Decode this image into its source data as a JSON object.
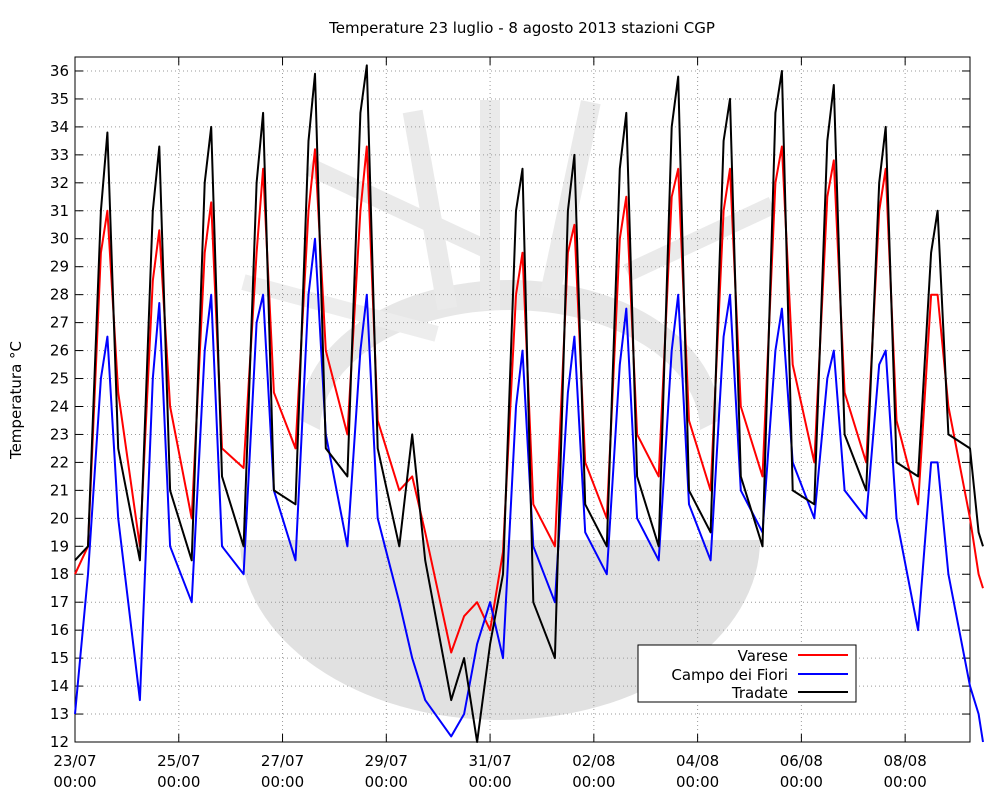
{
  "chart_data": {
    "type": "line",
    "title": "Temperature 23 luglio - 8 agosto 2013 stazioni CGP",
    "ylabel": "Temperatura °C",
    "xlabel": "",
    "ylim": [
      12,
      36.5
    ],
    "xlim": [
      "2013-07-23 00:00",
      "2013-08-09 06:00"
    ],
    "y_ticks": [
      12,
      13,
      14,
      15,
      16,
      17,
      18,
      19,
      20,
      21,
      22,
      23,
      24,
      25,
      26,
      27,
      28,
      29,
      30,
      31,
      32,
      33,
      34,
      35,
      36
    ],
    "x_ticks": [
      {
        "date": "2013-07-23",
        "label1": "23/07",
        "label2": "00:00"
      },
      {
        "date": "2013-07-25",
        "label1": "25/07",
        "label2": "00:00"
      },
      {
        "date": "2013-07-27",
        "label1": "27/07",
        "label2": "00:00"
      },
      {
        "date": "2013-07-29",
        "label1": "29/07",
        "label2": "00:00"
      },
      {
        "date": "2013-07-31",
        "label1": "31/07",
        "label2": "00:00"
      },
      {
        "date": "2013-08-02",
        "label1": "02/08",
        "label2": "00:00"
      },
      {
        "date": "2013-08-04",
        "label1": "04/08",
        "label2": "00:00"
      },
      {
        "date": "2013-08-06",
        "label1": "06/08",
        "label2": "00:00"
      },
      {
        "date": "2013-08-08",
        "label1": "08/08",
        "label2": "00:00"
      }
    ],
    "grid": true,
    "legend_position": "bottom-right",
    "series": [
      {
        "name": "Varese",
        "color": "#ff0000",
        "points": [
          [
            "2013-07-23 00:00",
            18.0
          ],
          [
            "2013-07-23 06:00",
            19.0
          ],
          [
            "2013-07-23 12:00",
            29.5
          ],
          [
            "2013-07-23 15:00",
            31.0
          ],
          [
            "2013-07-23 20:00",
            24.5
          ],
          [
            "2013-07-24 06:00",
            19.0
          ],
          [
            "2013-07-24 12:00",
            28.5
          ],
          [
            "2013-07-24 15:00",
            30.3
          ],
          [
            "2013-07-24 20:00",
            24.0
          ],
          [
            "2013-07-25 06:00",
            20.0
          ],
          [
            "2013-07-25 12:00",
            29.5
          ],
          [
            "2013-07-25 15:00",
            31.3
          ],
          [
            "2013-07-25 20:00",
            22.5
          ],
          [
            "2013-07-26 06:00",
            21.8
          ],
          [
            "2013-07-26 12:00",
            29.5
          ],
          [
            "2013-07-26 15:00",
            32.5
          ],
          [
            "2013-07-26 20:00",
            24.5
          ],
          [
            "2013-07-27 06:00",
            22.5
          ],
          [
            "2013-07-27 12:00",
            31.0
          ],
          [
            "2013-07-27 15:00",
            33.2
          ],
          [
            "2013-07-27 20:00",
            26.0
          ],
          [
            "2013-07-28 06:00",
            23.0
          ],
          [
            "2013-07-28 12:00",
            31.0
          ],
          [
            "2013-07-28 15:00",
            33.3
          ],
          [
            "2013-07-28 20:00",
            23.5
          ],
          [
            "2013-07-29 06:00",
            21.0
          ],
          [
            "2013-07-29 12:00",
            21.5
          ],
          [
            "2013-07-29 18:00",
            19.5
          ],
          [
            "2013-07-30 06:00",
            15.2
          ],
          [
            "2013-07-30 12:00",
            16.5
          ],
          [
            "2013-07-30 18:00",
            17.0
          ],
          [
            "2013-07-31 00:00",
            16.0
          ],
          [
            "2013-07-31 06:00",
            18.8
          ],
          [
            "2013-07-31 12:00",
            28.0
          ],
          [
            "2013-07-31 15:00",
            29.5
          ],
          [
            "2013-07-31 20:00",
            20.5
          ],
          [
            "2013-08-01 06:00",
            19.0
          ],
          [
            "2013-08-01 12:00",
            29.5
          ],
          [
            "2013-08-01 15:00",
            30.5
          ],
          [
            "2013-08-01 20:00",
            22.0
          ],
          [
            "2013-08-02 06:00",
            20.0
          ],
          [
            "2013-08-02 12:00",
            30.0
          ],
          [
            "2013-08-02 15:00",
            31.5
          ],
          [
            "2013-08-02 20:00",
            23.0
          ],
          [
            "2013-08-03 06:00",
            21.5
          ],
          [
            "2013-08-03 12:00",
            31.5
          ],
          [
            "2013-08-03 15:00",
            32.5
          ],
          [
            "2013-08-03 20:00",
            23.5
          ],
          [
            "2013-08-04 06:00",
            21.0
          ],
          [
            "2013-08-04 12:00",
            31.0
          ],
          [
            "2013-08-04 15:00",
            32.5
          ],
          [
            "2013-08-04 20:00",
            24.0
          ],
          [
            "2013-08-05 06:00",
            21.5
          ],
          [
            "2013-08-05 12:00",
            32.0
          ],
          [
            "2013-08-05 15:00",
            33.3
          ],
          [
            "2013-08-05 20:00",
            25.5
          ],
          [
            "2013-08-06 06:00",
            22.0
          ],
          [
            "2013-08-06 12:00",
            31.5
          ],
          [
            "2013-08-06 15:00",
            32.8
          ],
          [
            "2013-08-06 20:00",
            24.5
          ],
          [
            "2013-08-07 06:00",
            22.0
          ],
          [
            "2013-08-07 12:00",
            31.0
          ],
          [
            "2013-08-07 15:00",
            32.5
          ],
          [
            "2013-08-07 20:00",
            23.5
          ],
          [
            "2013-08-08 06:00",
            20.5
          ],
          [
            "2013-08-08 12:00",
            28.0
          ],
          [
            "2013-08-08 15:00",
            28.0
          ],
          [
            "2013-08-08 20:00",
            24.0
          ],
          [
            "2013-08-09 06:00",
            20.0
          ],
          [
            "2013-08-09 10:00",
            18.0
          ],
          [
            "2013-08-09 12:00",
            17.5
          ]
        ]
      },
      {
        "name": "Campo dei Fiori",
        "color": "#0000ff",
        "points": [
          [
            "2013-07-23 00:00",
            13.0
          ],
          [
            "2013-07-23 06:00",
            18.0
          ],
          [
            "2013-07-23 12:00",
            25.0
          ],
          [
            "2013-07-23 15:00",
            26.5
          ],
          [
            "2013-07-23 20:00",
            20.0
          ],
          [
            "2013-07-24 06:00",
            13.5
          ],
          [
            "2013-07-24 12:00",
            25.0
          ],
          [
            "2013-07-24 15:00",
            27.7
          ],
          [
            "2013-07-24 20:00",
            19.0
          ],
          [
            "2013-07-25 06:00",
            17.0
          ],
          [
            "2013-07-25 12:00",
            26.0
          ],
          [
            "2013-07-25 15:00",
            28.0
          ],
          [
            "2013-07-25 20:00",
            19.0
          ],
          [
            "2013-07-26 06:00",
            18.0
          ],
          [
            "2013-07-26 12:00",
            27.0
          ],
          [
            "2013-07-26 15:00",
            28.0
          ],
          [
            "2013-07-26 20:00",
            21.0
          ],
          [
            "2013-07-27 06:00",
            18.5
          ],
          [
            "2013-07-27 12:00",
            28.0
          ],
          [
            "2013-07-27 15:00",
            30.0
          ],
          [
            "2013-07-27 20:00",
            23.0
          ],
          [
            "2013-07-28 06:00",
            19.0
          ],
          [
            "2013-07-28 12:00",
            26.0
          ],
          [
            "2013-07-28 15:00",
            28.0
          ],
          [
            "2013-07-28 20:00",
            20.0
          ],
          [
            "2013-07-29 06:00",
            17.0
          ],
          [
            "2013-07-29 12:00",
            15.0
          ],
          [
            "2013-07-29 18:00",
            13.5
          ],
          [
            "2013-07-30 06:00",
            12.2
          ],
          [
            "2013-07-30 12:00",
            13.0
          ],
          [
            "2013-07-30 18:00",
            15.5
          ],
          [
            "2013-07-31 00:00",
            17.0
          ],
          [
            "2013-07-31 06:00",
            15.0
          ],
          [
            "2013-07-31 12:00",
            24.0
          ],
          [
            "2013-07-31 15:00",
            26.0
          ],
          [
            "2013-07-31 20:00",
            19.0
          ],
          [
            "2013-08-01 06:00",
            17.0
          ],
          [
            "2013-08-01 12:00",
            24.5
          ],
          [
            "2013-08-01 15:00",
            26.5
          ],
          [
            "2013-08-01 20:00",
            19.5
          ],
          [
            "2013-08-02 06:00",
            18.0
          ],
          [
            "2013-08-02 12:00",
            25.5
          ],
          [
            "2013-08-02 15:00",
            27.5
          ],
          [
            "2013-08-02 20:00",
            20.0
          ],
          [
            "2013-08-03 06:00",
            18.5
          ],
          [
            "2013-08-03 12:00",
            26.0
          ],
          [
            "2013-08-03 15:00",
            28.0
          ],
          [
            "2013-08-03 20:00",
            20.5
          ],
          [
            "2013-08-04 06:00",
            18.5
          ],
          [
            "2013-08-04 12:00",
            26.5
          ],
          [
            "2013-08-04 15:00",
            28.0
          ],
          [
            "2013-08-04 20:00",
            21.0
          ],
          [
            "2013-08-05 06:00",
            19.5
          ],
          [
            "2013-08-05 12:00",
            26.0
          ],
          [
            "2013-08-05 15:00",
            27.5
          ],
          [
            "2013-08-05 20:00",
            22.0
          ],
          [
            "2013-08-06 06:00",
            20.0
          ],
          [
            "2013-08-06 12:00",
            25.0
          ],
          [
            "2013-08-06 15:00",
            26.0
          ],
          [
            "2013-08-06 20:00",
            21.0
          ],
          [
            "2013-08-07 06:00",
            20.0
          ],
          [
            "2013-08-07 12:00",
            25.5
          ],
          [
            "2013-08-07 15:00",
            26.0
          ],
          [
            "2013-08-07 20:00",
            20.0
          ],
          [
            "2013-08-08 06:00",
            16.0
          ],
          [
            "2013-08-08 12:00",
            22.0
          ],
          [
            "2013-08-08 15:00",
            22.0
          ],
          [
            "2013-08-08 20:00",
            18.0
          ],
          [
            "2013-08-09 06:00",
            14.0
          ],
          [
            "2013-08-09 10:00",
            13.0
          ],
          [
            "2013-08-09 12:00",
            12.0
          ]
        ]
      },
      {
        "name": "Tradate",
        "color": "#000000",
        "points": [
          [
            "2013-07-23 00:00",
            18.5
          ],
          [
            "2013-07-23 06:00",
            19.0
          ],
          [
            "2013-07-23 12:00",
            31.0
          ],
          [
            "2013-07-23 15:00",
            33.8
          ],
          [
            "2013-07-23 20:00",
            22.5
          ],
          [
            "2013-07-24 06:00",
            18.5
          ],
          [
            "2013-07-24 12:00",
            31.0
          ],
          [
            "2013-07-24 15:00",
            33.3
          ],
          [
            "2013-07-24 20:00",
            21.0
          ],
          [
            "2013-07-25 06:00",
            18.5
          ],
          [
            "2013-07-25 12:00",
            32.0
          ],
          [
            "2013-07-25 15:00",
            34.0
          ],
          [
            "2013-07-25 20:00",
            21.5
          ],
          [
            "2013-07-26 06:00",
            19.0
          ],
          [
            "2013-07-26 12:00",
            32.0
          ],
          [
            "2013-07-26 15:00",
            34.5
          ],
          [
            "2013-07-26 20:00",
            21.0
          ],
          [
            "2013-07-27 06:00",
            20.5
          ],
          [
            "2013-07-27 12:00",
            33.5
          ],
          [
            "2013-07-27 15:00",
            35.9
          ],
          [
            "2013-07-27 20:00",
            22.5
          ],
          [
            "2013-07-28 06:00",
            21.5
          ],
          [
            "2013-07-28 12:00",
            34.5
          ],
          [
            "2013-07-28 15:00",
            36.2
          ],
          [
            "2013-07-28 20:00",
            22.5
          ],
          [
            "2013-07-29 06:00",
            19.0
          ],
          [
            "2013-07-29 12:00",
            23.0
          ],
          [
            "2013-07-29 18:00",
            18.5
          ],
          [
            "2013-07-30 06:00",
            13.5
          ],
          [
            "2013-07-30 12:00",
            15.0
          ],
          [
            "2013-07-30 18:00",
            12.0
          ],
          [
            "2013-07-31 00:00",
            15.5
          ],
          [
            "2013-07-31 06:00",
            18.0
          ],
          [
            "2013-07-31 12:00",
            31.0
          ],
          [
            "2013-07-31 15:00",
            32.5
          ],
          [
            "2013-07-31 20:00",
            17.0
          ],
          [
            "2013-08-01 06:00",
            15.0
          ],
          [
            "2013-08-01 12:00",
            31.0
          ],
          [
            "2013-08-01 15:00",
            33.0
          ],
          [
            "2013-08-01 20:00",
            20.5
          ],
          [
            "2013-08-02 06:00",
            19.0
          ],
          [
            "2013-08-02 12:00",
            32.5
          ],
          [
            "2013-08-02 15:00",
            34.5
          ],
          [
            "2013-08-02 20:00",
            21.5
          ],
          [
            "2013-08-03 06:00",
            19.0
          ],
          [
            "2013-08-03 12:00",
            34.0
          ],
          [
            "2013-08-03 15:00",
            35.8
          ],
          [
            "2013-08-03 20:00",
            21.0
          ],
          [
            "2013-08-04 06:00",
            19.5
          ],
          [
            "2013-08-04 12:00",
            33.5
          ],
          [
            "2013-08-04 15:00",
            35.0
          ],
          [
            "2013-08-04 20:00",
            21.5
          ],
          [
            "2013-08-05 06:00",
            19.0
          ],
          [
            "2013-08-05 12:00",
            34.5
          ],
          [
            "2013-08-05 15:00",
            36.0
          ],
          [
            "2013-08-05 20:00",
            21.0
          ],
          [
            "2013-08-06 06:00",
            20.5
          ],
          [
            "2013-08-06 12:00",
            33.5
          ],
          [
            "2013-08-06 15:00",
            35.5
          ],
          [
            "2013-08-06 20:00",
            23.0
          ],
          [
            "2013-08-07 06:00",
            21.0
          ],
          [
            "2013-08-07 12:00",
            32.0
          ],
          [
            "2013-08-07 15:00",
            34.0
          ],
          [
            "2013-08-07 20:00",
            22.0
          ],
          [
            "2013-08-08 06:00",
            21.5
          ],
          [
            "2013-08-08 12:00",
            29.5
          ],
          [
            "2013-08-08 15:00",
            31.0
          ],
          [
            "2013-08-08 20:00",
            23.0
          ],
          [
            "2013-08-09 06:00",
            22.5
          ],
          [
            "2013-08-09 10:00",
            19.5
          ],
          [
            "2013-08-09 12:00",
            19.0
          ]
        ]
      }
    ]
  }
}
